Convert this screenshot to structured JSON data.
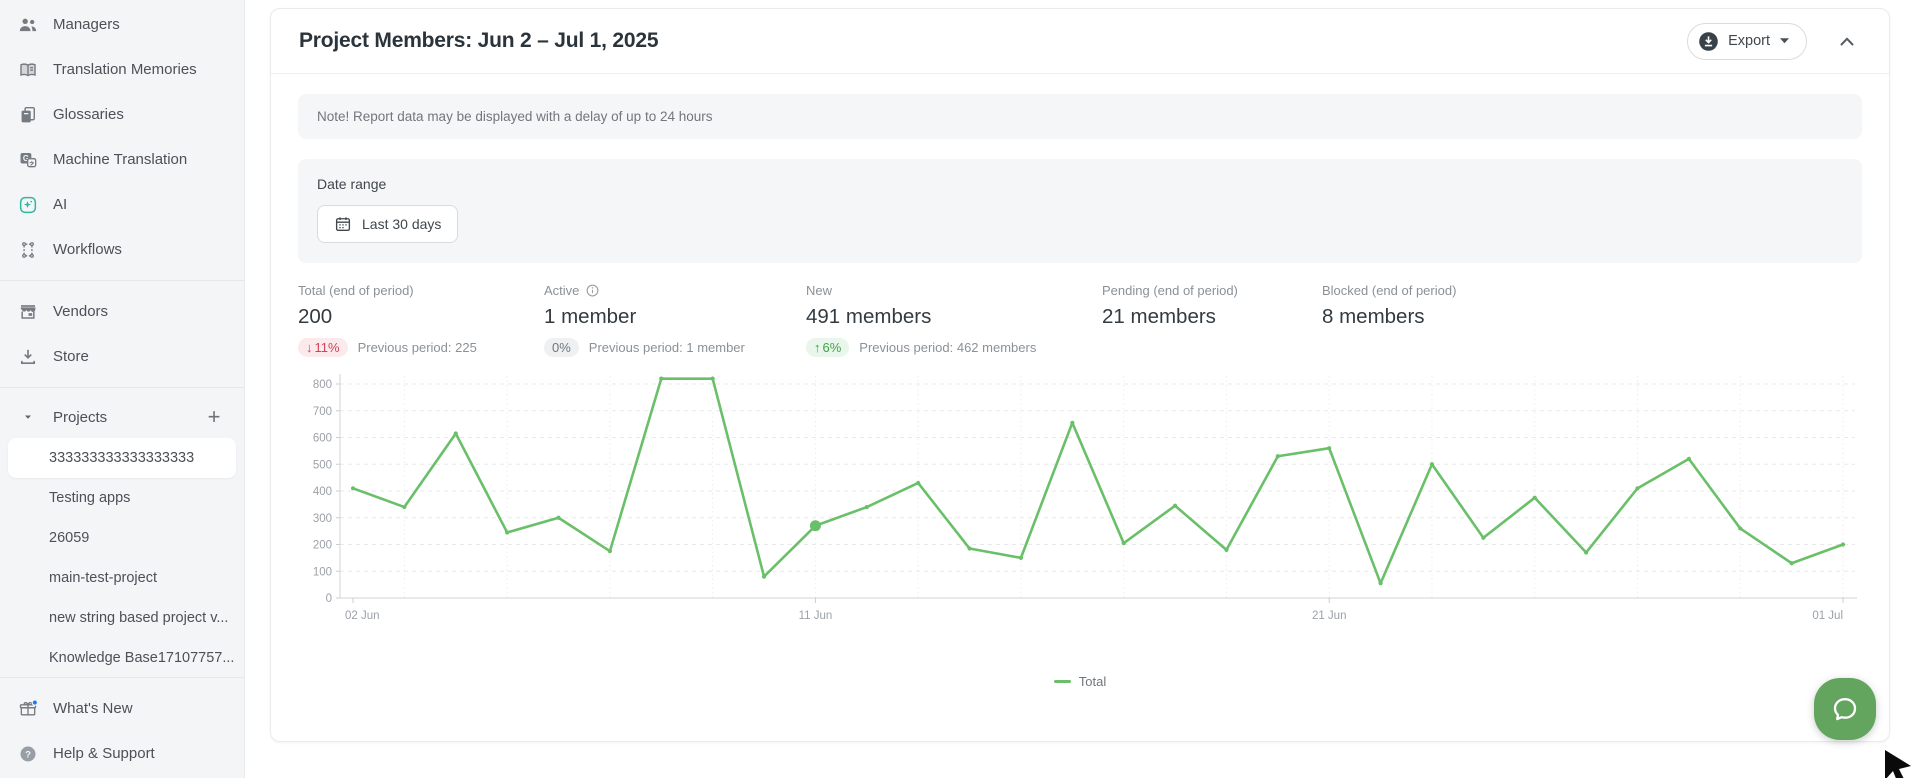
{
  "sidebar": {
    "nav_top": [
      {
        "label": "Managers",
        "icon": "managers-icon"
      },
      {
        "label": "Translation Memories",
        "icon": "translation-memories-icon"
      },
      {
        "label": "Glossaries",
        "icon": "glossaries-icon"
      },
      {
        "label": "Machine Translation",
        "icon": "machine-translation-icon"
      },
      {
        "label": "AI",
        "icon": "ai-icon"
      },
      {
        "label": "Workflows",
        "icon": "workflows-icon"
      }
    ],
    "nav_mid": [
      {
        "label": "Vendors",
        "icon": "vendors-icon"
      },
      {
        "label": "Store",
        "icon": "store-icon"
      }
    ],
    "projects_section": {
      "title": "Projects"
    },
    "projects": [
      {
        "label": "333333333333333333",
        "selected": true
      },
      {
        "label": "Testing apps"
      },
      {
        "label": "26059"
      },
      {
        "label": "main-test-project"
      },
      {
        "label": "new string based project v..."
      },
      {
        "label": "Knowledge Base17107757..."
      }
    ],
    "nav_bottom": [
      {
        "label": "What's New",
        "icon": "gift-icon",
        "has_notification_dot": true
      },
      {
        "label": "Help & Support",
        "icon": "help-icon"
      }
    ]
  },
  "report": {
    "title": "Project Members: Jun 2 – Jul 1, 2025",
    "export_label": "Export",
    "note": "Note! Report data may be displayed with a delay of up to 24 hours",
    "date_range": {
      "label": "Date range",
      "value": "Last 30 days"
    },
    "stats": [
      {
        "label": "Total (end of period)",
        "value": "200",
        "badge_arrow": "↓",
        "badge_text": "11%",
        "previous": "Previous period: 225"
      },
      {
        "label": "Active",
        "value": "1 member",
        "badge_arrow": "",
        "badge_text": "0%",
        "previous": "Previous period: 1 member"
      },
      {
        "label": "New",
        "value": "491 members",
        "badge_arrow": "↑",
        "badge_text": "6%",
        "previous": "Previous period: 462 members"
      },
      {
        "label": "Pending (end of period)",
        "value": "21 members"
      },
      {
        "label": "Blocked (end of period)",
        "value": "8 members"
      }
    ]
  },
  "chart_data": {
    "type": "line",
    "categories": [
      "Jun 2",
      "Jun 3",
      "Jun 4",
      "Jun 5",
      "Jun 6",
      "Jun 7",
      "Jun 8",
      "Jun 9",
      "Jun 10",
      "Jun 11",
      "Jun 12",
      "Jun 13",
      "Jun 14",
      "Jun 15",
      "Jun 16",
      "Jun 17",
      "Jun 18",
      "Jun 19",
      "Jun 20",
      "Jun 21",
      "Jun 22",
      "Jun 23",
      "Jun 24",
      "Jun 25",
      "Jun 26",
      "Jun 27",
      "Jun 28",
      "Jun 29",
      "Jun 30",
      "Jul 1"
    ],
    "series": [
      {
        "name": "Total",
        "color": "#6abf69",
        "values": [
          410,
          340,
          615,
          245,
          300,
          175,
          820,
          820,
          80,
          270,
          340,
          430,
          185,
          150,
          655,
          205,
          345,
          180,
          530,
          560,
          55,
          500,
          225,
          375,
          170,
          410,
          520,
          260,
          130,
          200
        ]
      }
    ],
    "ylim": [
      0,
      800
    ],
    "ytick_step": 100,
    "tick_indices": [
      0,
      9,
      19,
      29
    ],
    "tick_labels": [
      "02 Jun",
      "11 Jun",
      "21 Jun",
      "01 Jul"
    ],
    "highlight_index": 9,
    "grid": true,
    "legend_position": "bottom"
  },
  "colors": {
    "accent_green": "#4aa94e",
    "line_green": "#6abf69",
    "negative": "#cf4458",
    "negative_bg": "#fbe9ec",
    "positive": "#43a04a",
    "positive_bg": "#e9f6eb",
    "neutral": "#6f767d",
    "neutral_bg": "#eef0f1",
    "chat_launcher": "#63a55f",
    "notification_blue": "#1f7cf1"
  }
}
